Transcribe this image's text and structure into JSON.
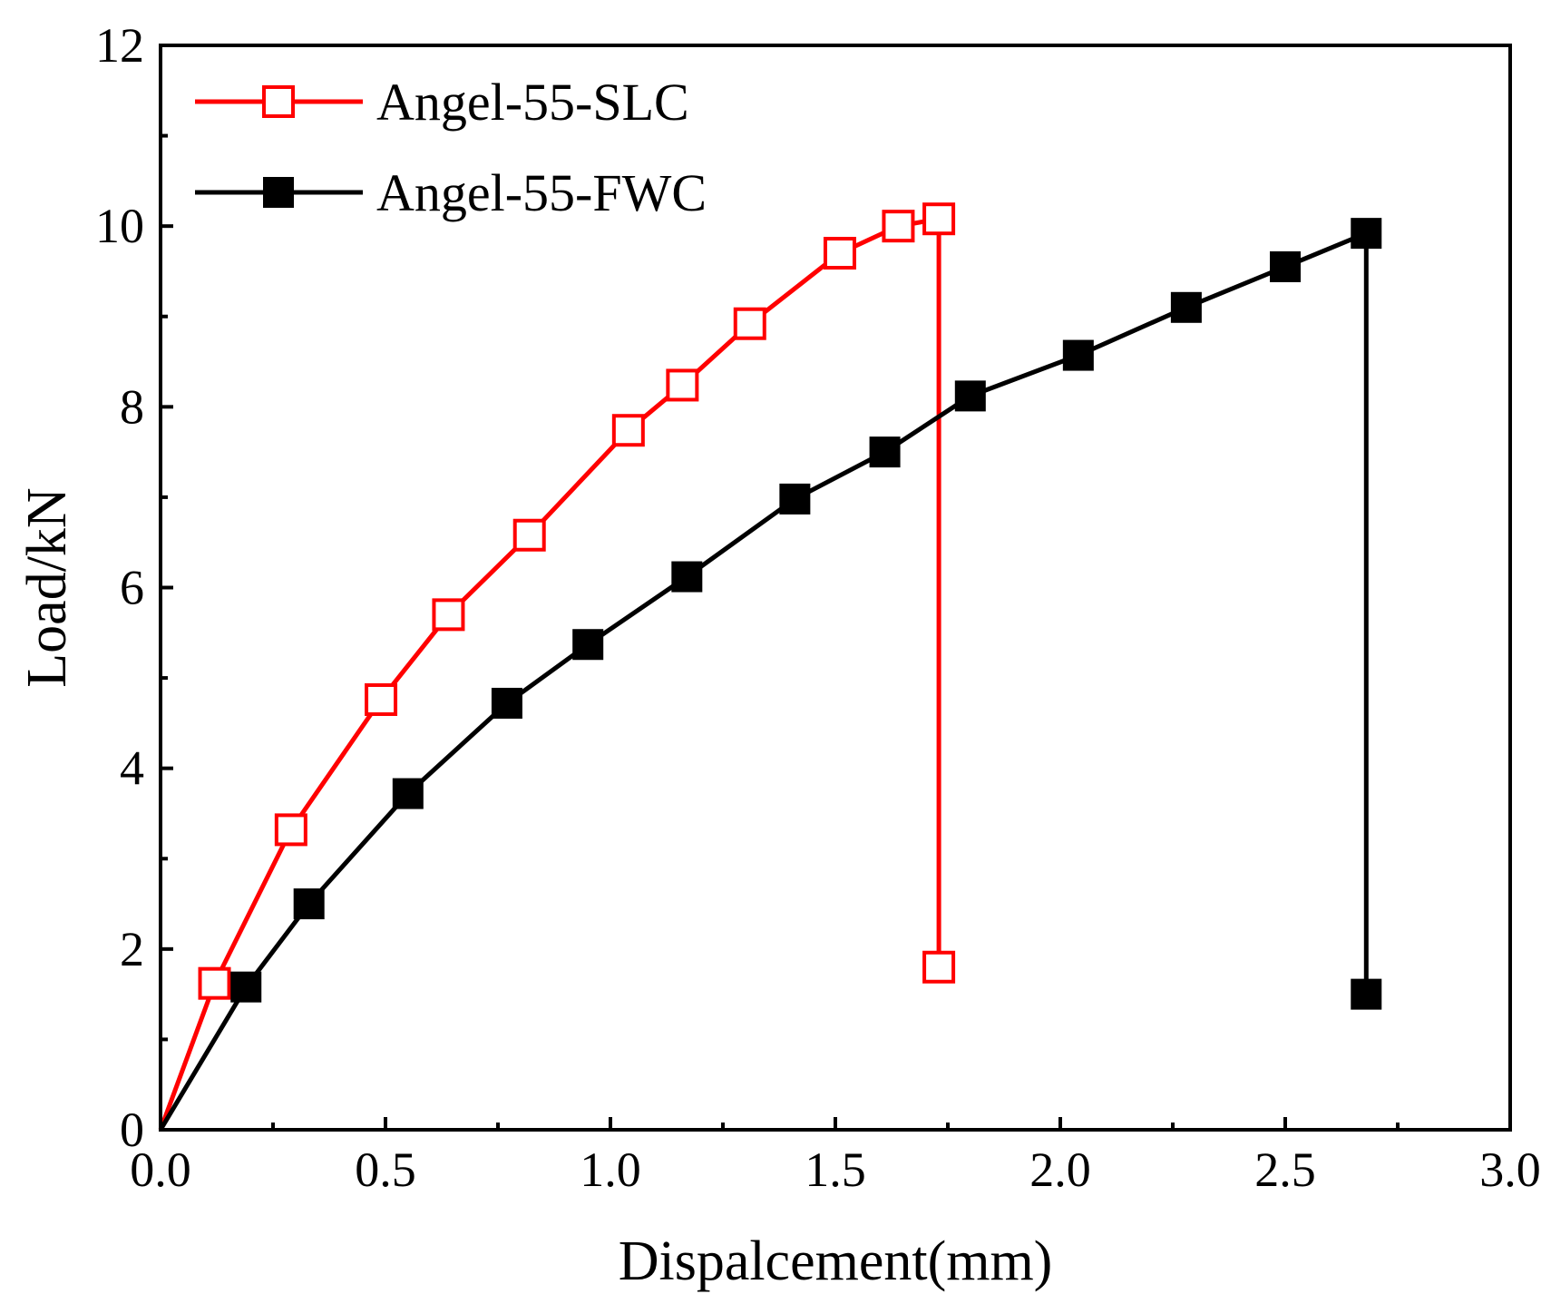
{
  "chart_data": {
    "type": "line",
    "title": "",
    "xlabel": "Dispalcement(mm)",
    "ylabel": "Load/kN",
    "xlim": [
      0,
      3.0
    ],
    "ylim": [
      0,
      12
    ],
    "xticks": [
      0,
      0.5,
      1.0,
      1.5,
      2.0,
      2.5,
      3.0
    ],
    "xtick_labels": [
      "0.0",
      "0.5",
      "1.0",
      "1.5",
      "2.0",
      "2.5",
      "3.0"
    ],
    "yticks": [
      0,
      2,
      4,
      6,
      8,
      10,
      12
    ],
    "ytick_labels": [
      "0",
      "2",
      "4",
      "6",
      "8",
      "10",
      "12"
    ],
    "grid": false,
    "legend_position": "top-left",
    "series": [
      {
        "name": "Angel-55-SLC",
        "color": "#ff0000",
        "marker": "open-square",
        "x": [
          0,
          0.12,
          0.29,
          0.49,
          0.64,
          0.82,
          1.04,
          1.16,
          1.31,
          1.51,
          1.64,
          1.73,
          1.73
        ],
        "y": [
          0,
          1.62,
          3.32,
          4.76,
          5.7,
          6.58,
          7.74,
          8.24,
          8.92,
          9.7,
          10.0,
          10.08,
          1.8
        ],
        "marker_start": 1
      },
      {
        "name": "Angel-55-FWC",
        "color": "#000000",
        "marker": "filled-square",
        "x": [
          0,
          0.19,
          0.33,
          0.55,
          0.77,
          0.95,
          1.17,
          1.41,
          1.61,
          1.8,
          2.04,
          2.28,
          2.5,
          2.68,
          2.68
        ],
        "y": [
          0,
          1.58,
          2.5,
          3.72,
          4.72,
          5.37,
          6.12,
          6.98,
          7.5,
          8.12,
          8.57,
          9.1,
          9.55,
          9.92,
          1.5
        ],
        "marker_start": 1
      }
    ]
  }
}
